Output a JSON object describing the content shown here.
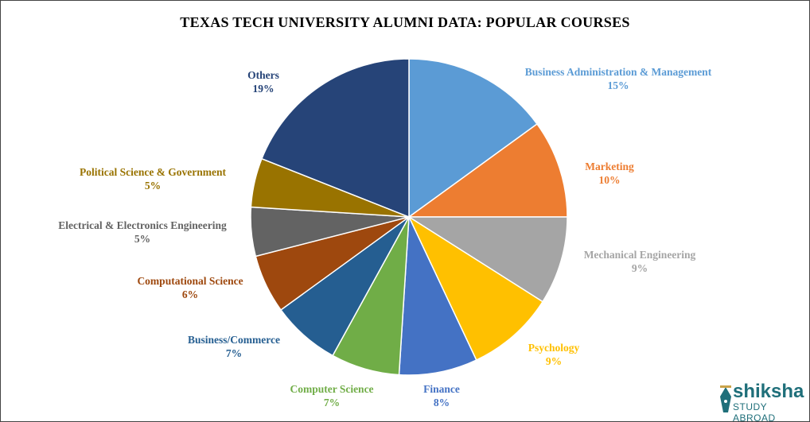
{
  "chart_data": {
    "type": "pie",
    "title": "TEXAS TECH UNIVERSITY ALUMNI DATA: POPULAR COURSES",
    "start": "12 o'clock, clockwise",
    "slices": [
      {
        "label": "Business Administration  & Management",
        "value": 15,
        "display": "15%",
        "color": "#5b9bd5"
      },
      {
        "label": "Marketing",
        "value": 10,
        "display": "10%",
        "color": "#ed7d31"
      },
      {
        "label": "Mechanical Engineering",
        "value": 9,
        "display": "9%",
        "color": "#a5a5a5"
      },
      {
        "label": "Psychology",
        "value": 9,
        "display": "9%",
        "color": "#ffc000"
      },
      {
        "label": "Finance",
        "value": 8,
        "display": "8%",
        "color": "#4472c4"
      },
      {
        "label": "Computer  Science",
        "value": 7,
        "display": "7%",
        "color": "#70ad47"
      },
      {
        "label": "Business/Commerce",
        "value": 7,
        "display": "7%",
        "color": "#255e91"
      },
      {
        "label": "Computational  Science",
        "value": 6,
        "display": "6%",
        "color": "#9e480e"
      },
      {
        "label": "Electrical  & Electronics Engineering",
        "value": 5,
        "display": "5%",
        "color": "#636363"
      },
      {
        "label": "Political  Science & Government",
        "value": 5,
        "display": "5%",
        "color": "#997300"
      },
      {
        "label": "Others",
        "value": 19,
        "display": "19%",
        "color": "#264478"
      }
    ]
  },
  "logo": {
    "word": "shiksha",
    "sub": "STUDY ABROAD",
    "color": "#1f6f7a"
  }
}
